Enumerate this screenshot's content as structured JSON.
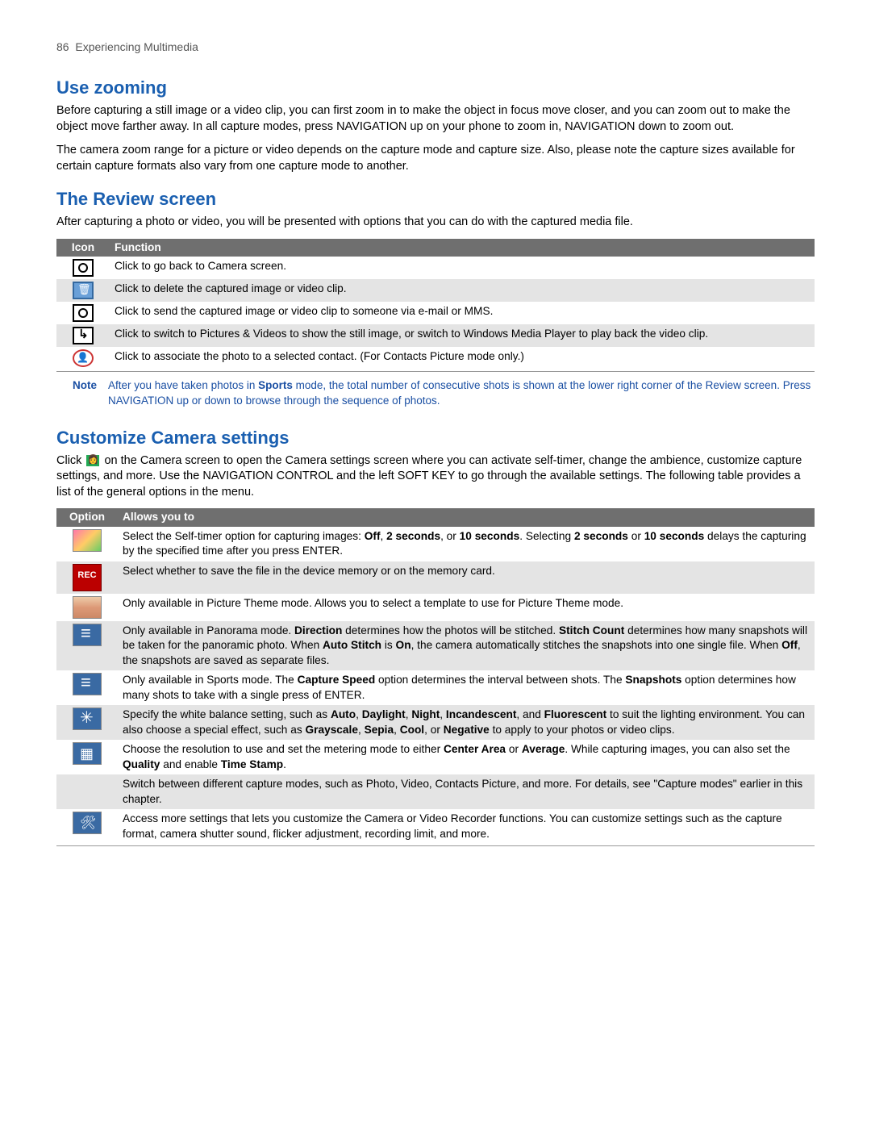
{
  "header": {
    "page_num": "86",
    "chapter": "Experiencing Multimedia"
  },
  "colors": {
    "heading": "#1a5fb0",
    "note": "#1a4fa3",
    "tbl_header_bg": "#6f6f6f",
    "row_alt_bg": "#e4e4e4"
  },
  "sec1": {
    "title": "Use zooming",
    "p1": "Before capturing a still image or a video clip, you can first zoom in to make the object in focus move closer, and you can zoom out to make the object move farther away. In all capture modes, press NAVIGATION up on your phone to zoom in, NAVIGATION down to zoom out.",
    "p2": "The camera zoom range for a picture or video depends on the capture mode and capture size. Also, please note the capture sizes available for certain capture formats also vary from one capture mode to another."
  },
  "sec2": {
    "title": "The Review screen",
    "p1": "After capturing a photo or video, you will be presented with options that you can do with the captured media file.",
    "col1": "Icon",
    "col2": "Function",
    "rows": [
      {
        "fn": "Click to go back to Camera screen."
      },
      {
        "fn": "Click to delete the captured image or video clip."
      },
      {
        "fn": "Click to send the captured image or video clip to someone via e-mail or MMS."
      },
      {
        "fn": "Click to switch to Pictures & Videos to show the still image, or switch to Windows Media Player to play back the video clip."
      },
      {
        "fn": "Click to associate the photo to a selected contact. (For Contacts Picture mode only.)"
      }
    ],
    "note_label": "Note",
    "note_html": "After you have taken photos in <b>Sports</b> mode, the total number of consecutive shots is shown at the lower right corner of the Review screen. Press NAVIGATION up or down to browse through the sequence of photos."
  },
  "sec3": {
    "title": "Customize Camera settings",
    "p1_pre": "Click ",
    "p1_post": " on the Camera screen to open the Camera settings screen where you can activate self-timer, change the ambience, customize capture settings, and more. Use the NAVIGATION CONTROL and the left SOFT KEY to go through the available settings. The following table provides a list of the general options in the menu.",
    "col1": "Option",
    "col2": "Allows you to",
    "rows": [
      {
        "html": "Select the Self-timer option for capturing images: <b>Off</b>, <b>2 seconds</b>, or <b>10 seconds</b>. Selecting <b>2 seconds</b> or <b>10 seconds</b> delays the capturing by the specified time after you press ENTER."
      },
      {
        "html": "Select whether to save the file in the device memory or on the memory card."
      },
      {
        "html": "Only available in Picture Theme mode. Allows you to select a template to use for Picture Theme mode."
      },
      {
        "html": "Only available in Panorama mode. <b>Direction</b> determines how the photos will be stitched. <b>Stitch Count</b> determines how many snapshots will be taken for the panoramic photo. When <b>Auto Stitch</b> is <b>On</b>, the camera automatically stitches the snapshots into one single file. When <b>Off</b>, the snapshots are saved as separate files."
      },
      {
        "html": "Only available in Sports mode. The <b>Capture Speed</b> option determines the interval between shots. The <b>Snapshots</b> option determines how many shots to take with a single press of ENTER."
      },
      {
        "html": "Specify the white balance setting, such as <b>Auto</b>, <b>Daylight</b>, <b>Night</b>, <b>Incandescent</b>, and <b>Fluorescent</b> to suit the lighting environment. You can also choose a special effect, such as <b>Grayscale</b>, <b>Sepia</b>, <b>Cool</b>, or <b>Negative</b> to apply to your photos or video clips."
      },
      {
        "html": "Choose the resolution to use and set the metering mode to either <b>Center Area</b> or <b>Average</b>. While capturing images, you can also set the <b>Quality</b> and enable <b>Time Stamp</b>."
      },
      {
        "html": "Switch between different capture modes, such as Photo, Video, Contacts Picture, and more. For details, see \"Capture modes\" earlier in this chapter."
      },
      {
        "html": "Access more settings that lets you customize the Camera or Video Recorder functions. You can customize settings such as the capture format, camera shutter sound, flicker adjustment, recording limit, and more."
      }
    ]
  }
}
